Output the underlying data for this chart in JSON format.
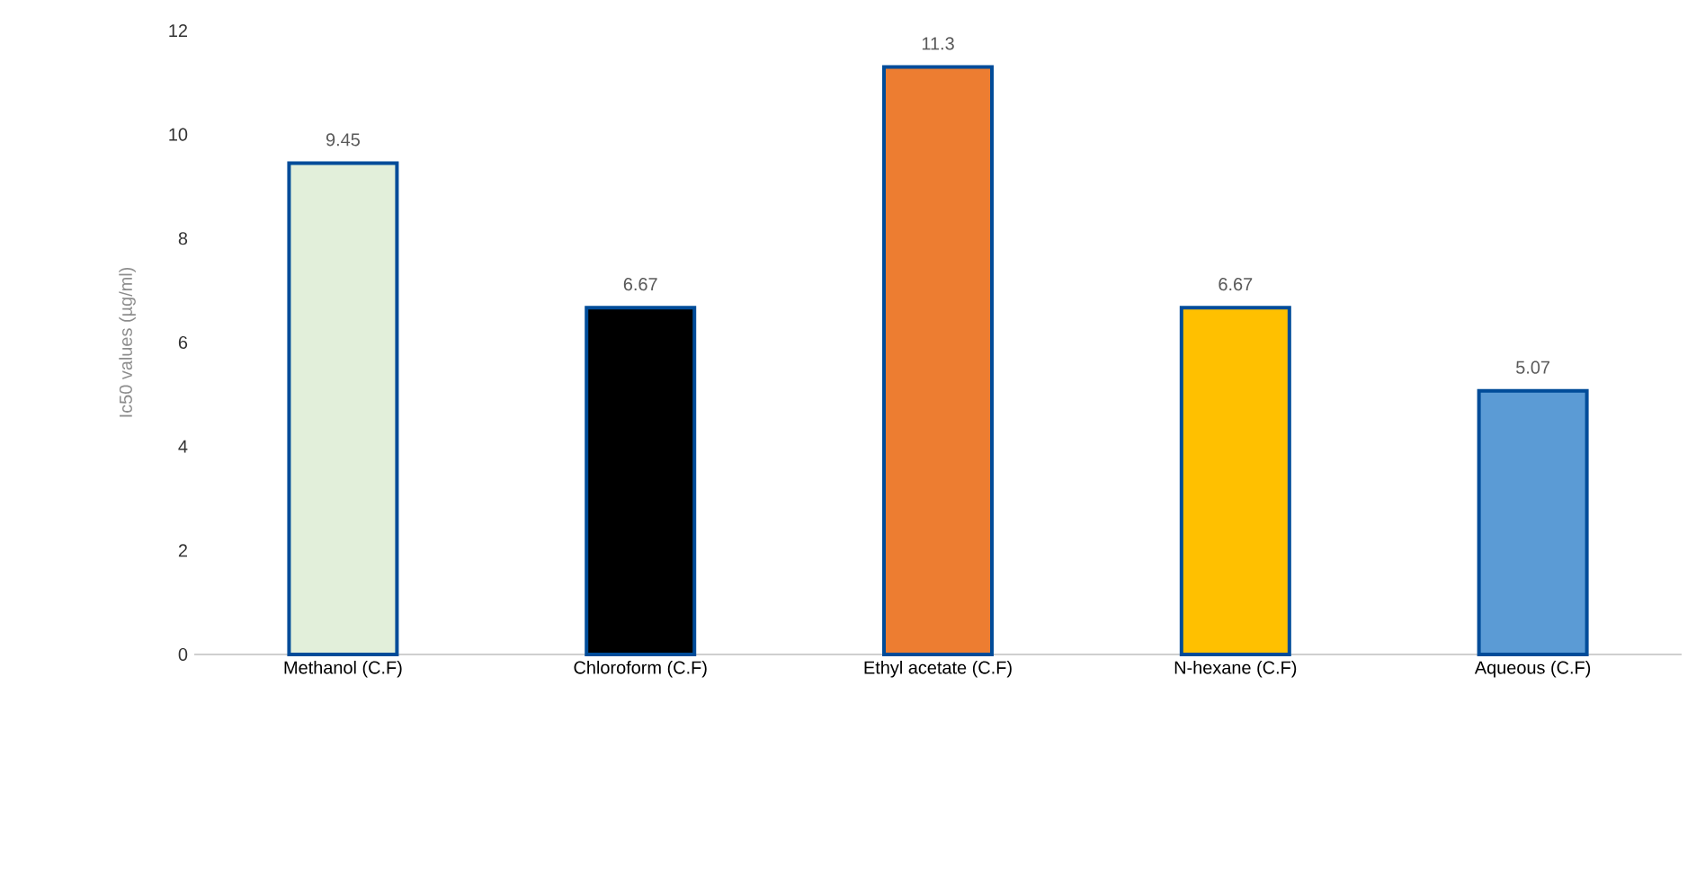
{
  "chart_data": {
    "type": "bar",
    "ylabel": "Ic50 values (µg/ml)",
    "categories": [
      "Methanol (C.F)",
      "Chloroform (C.F)",
      "Ethyl acetate (C.F)",
      "N-hexane (C.F)",
      "Aqueous (C.F)"
    ],
    "values": [
      9.45,
      6.67,
      11.3,
      6.67,
      5.07
    ],
    "colors": [
      "#e2efda",
      "#000000",
      "#ed7d31",
      "#ffc000",
      "#5b9bd5"
    ],
    "ylim": [
      0,
      12
    ],
    "yticks": [
      0,
      2,
      4,
      6,
      8,
      10,
      12
    ],
    "data_labels": true,
    "grid": false
  }
}
